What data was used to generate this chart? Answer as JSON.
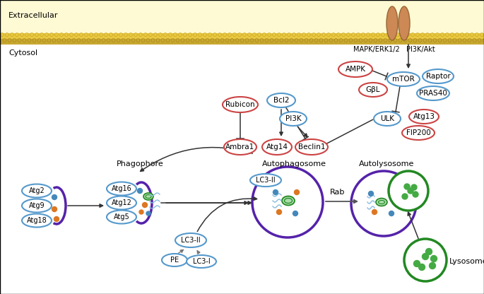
{
  "bg_extracellular": "#FEFAD4",
  "membrane_yellow": "#F5D020",
  "membrane_tan": "#D4C070",
  "receptor_color": "#CC8855",
  "receptor_edge": "#996633",
  "extracellular_label": "Extracellular",
  "cytosol_label": "Cytosol",
  "phagophore_label": "Phagophore",
  "autophagosome_label": "Autophagosome",
  "autolysosome_label": "Autolysosome",
  "lysosome_label": "Lysosome",
  "mapk_label": "MAPK/ERK1/2",
  "pi3k_akt_label": "PI3K/Akt",
  "rab_label": "Rab",
  "arrow_color": "#333333",
  "red_ec": "#CC4444",
  "blue_ec": "#5599CC",
  "purple_color": "#5522AA",
  "green_color": "#228822",
  "orange_dot": "#DD7722",
  "blue_dot": "#4488BB",
  "green_dot": "#44AA44",
  "lt_blue_dot": "#88BBDD",
  "mem_top_color": "#E8C840",
  "mem_bot_color": "#C8A830"
}
